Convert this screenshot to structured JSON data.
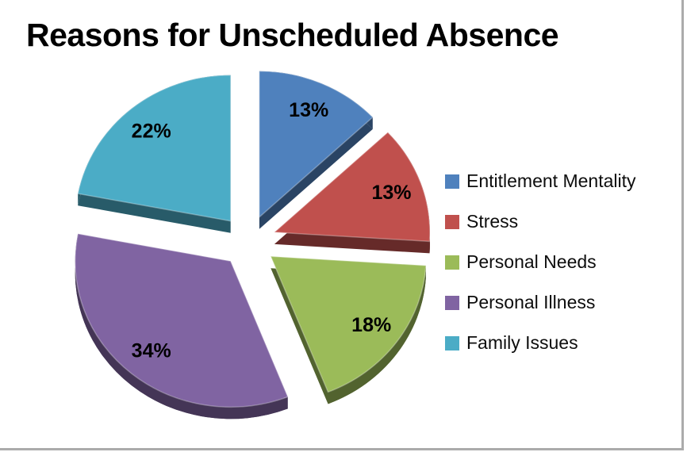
{
  "frame": {
    "background": "#ffffff",
    "border_color": "#ababab"
  },
  "chart_data": {
    "type": "pie",
    "style": "3d-exploded",
    "title": "Reasons for Unscheduled Absence",
    "series": [
      {
        "label": "Entitlement Mentality",
        "value": 13,
        "display": "13%",
        "color": "#4F81BD"
      },
      {
        "label": "Stress",
        "value": 13,
        "display": "13%",
        "color": "#C0504D"
      },
      {
        "label": "Personal Needs",
        "value": 18,
        "display": "18%",
        "color": "#9BBB59"
      },
      {
        "label": "Personal Illness",
        "value": 34,
        "display": "34%",
        "color": "#8064A2"
      },
      {
        "label": "Family Issues",
        "value": 22,
        "display": "22%",
        "color": "#4BACC6"
      }
    ],
    "total": 100,
    "start_angle_deg": -90,
    "direction": "clockwise",
    "labels": "percent-inside-slice",
    "label_color": "#000000",
    "title_color": "#000000",
    "legend_position": "right"
  }
}
